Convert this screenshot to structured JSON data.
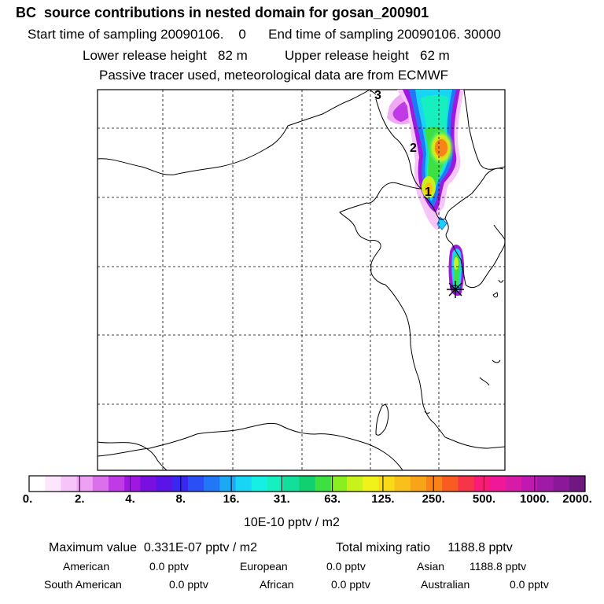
{
  "header": {
    "title": "BC  source contributions in nested domain for gosan_200901",
    "start_label": "Start time of sampling 20090106.    0",
    "end_label": "End time of sampling 20090106. 30000",
    "lower_release": "Lower release height   82 m",
    "upper_release": "Upper release height   62 m",
    "tracer_note": "Passive tracer used, meteorological data are from ECMWF"
  },
  "map": {
    "trajectory_labels": [
      "1",
      "2",
      "3"
    ],
    "receptor_marker": "gosan-receptor-star"
  },
  "colorbar": {
    "ticks": [
      "0.",
      "2.",
      "4.",
      "8.",
      "16.",
      "31.",
      "63.",
      "125.",
      "250.",
      "500.",
      "1000.",
      "2000."
    ],
    "unit": "10E-10 pptv / m2",
    "colors": [
      "#ffffff",
      "#fde6fd",
      "#f6c4f8",
      "#eea0f2",
      "#dc6fea",
      "#c03ae6",
      "#a018e0",
      "#7a10e0",
      "#5a14e8",
      "#3a28f0",
      "#2a50f5",
      "#2078f6",
      "#1ca8f5",
      "#18d4f5",
      "#16f0e4",
      "#16f0c0",
      "#12e09a",
      "#10d070",
      "#3ce040",
      "#8aee20",
      "#c8f21a",
      "#f0f21a",
      "#f8da18",
      "#f8c018",
      "#f8a418",
      "#f88418",
      "#f85c20",
      "#f83448",
      "#f81c78",
      "#f01898",
      "#d81aa8",
      "#c018b0",
      "#a01aa8",
      "#8a1898",
      "#701880"
    ]
  },
  "stats": {
    "maximum": "Maximum value  0.331E-07 pptv / m2",
    "total": "Total mixing ratio     1188.8 pptv",
    "american_label": "American",
    "american_value": "0.0 pptv",
    "european_label": "European",
    "european_value": "0.0 pptv",
    "asian_label": "Asian",
    "asian_value": "1188.8 pptv",
    "south_american_label": "South American",
    "south_american_value": "0.0 pptv",
    "african_label": "African",
    "african_value": "0.0 pptv",
    "australian_label": "Australian",
    "australian_value": "0.0 pptv"
  }
}
